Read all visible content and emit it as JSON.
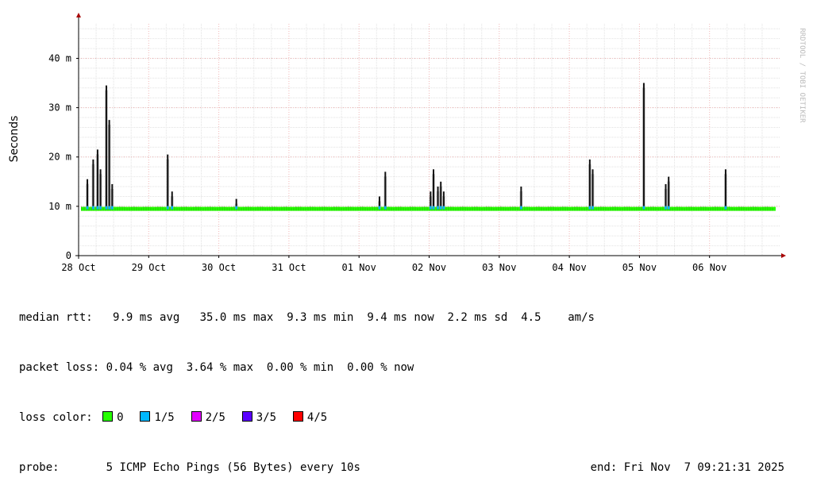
{
  "watermark": "RRDTOOL / TOBI OETIKER",
  "chart_data": {
    "type": "line",
    "ylabel": "Seconds",
    "ylim": [
      0,
      0.047
    ],
    "y_ticks": [
      {
        "value": 0,
        "label": "0"
      },
      {
        "value": 0.01,
        "label": "10 m"
      },
      {
        "value": 0.02,
        "label": "20 m"
      },
      {
        "value": 0.03,
        "label": "30 m"
      },
      {
        "value": 0.04,
        "label": "40 m"
      }
    ],
    "x_start": "2025-10-28",
    "x_end": "2025-11-07",
    "x_ticks": [
      "28 Oct",
      "29 Oct",
      "30 Oct",
      "31 Oct",
      "01 Nov",
      "02 Nov",
      "03 Nov",
      "04 Nov",
      "05 Nov",
      "06 Nov"
    ],
    "grid": true,
    "median_level": 0.0094,
    "series": [
      {
        "name": "median rtt",
        "color": "#000000",
        "spikes": [
          {
            "x": "2025-10-28 03:00",
            "y": 0.0155
          },
          {
            "x": "2025-10-28 05:00",
            "y": 0.0195
          },
          {
            "x": "2025-10-28 06:30",
            "y": 0.0215
          },
          {
            "x": "2025-10-28 07:30",
            "y": 0.0175
          },
          {
            "x": "2025-10-28 09:30",
            "y": 0.0345
          },
          {
            "x": "2025-10-28 10:30",
            "y": 0.0275
          },
          {
            "x": "2025-10-28 11:30",
            "y": 0.0145
          },
          {
            "x": "2025-10-29 06:30",
            "y": 0.0205
          },
          {
            "x": "2025-10-29 08:00",
            "y": 0.013
          },
          {
            "x": "2025-10-30 06:00",
            "y": 0.0115
          },
          {
            "x": "2025-11-01 07:00",
            "y": 0.012
          },
          {
            "x": "2025-11-01 09:00",
            "y": 0.017
          },
          {
            "x": "2025-11-02 00:30",
            "y": 0.013
          },
          {
            "x": "2025-11-02 01:30",
            "y": 0.0175
          },
          {
            "x": "2025-11-02 03:00",
            "y": 0.014
          },
          {
            "x": "2025-11-02 04:00",
            "y": 0.015
          },
          {
            "x": "2025-11-02 05:00",
            "y": 0.013
          },
          {
            "x": "2025-11-03 07:30",
            "y": 0.014
          },
          {
            "x": "2025-11-04 07:00",
            "y": 0.0195
          },
          {
            "x": "2025-11-04 08:00",
            "y": 0.0175
          },
          {
            "x": "2025-11-05 01:30",
            "y": 0.035
          },
          {
            "x": "2025-11-05 09:00",
            "y": 0.0145
          },
          {
            "x": "2025-11-05 10:00",
            "y": 0.016
          },
          {
            "x": "2025-11-06 05:30",
            "y": 0.0175
          }
        ]
      }
    ]
  },
  "stats": {
    "rtt": {
      "label": "median rtt:",
      "avg": "9.9 ms avg",
      "max": "35.0 ms max",
      "min": "9.3 ms min",
      "now": "9.4 ms now",
      "sd": "2.2 ms sd",
      "ams": "4.5",
      "ams_unit": "am/s"
    },
    "loss": {
      "label": "packet loss:",
      "avg": "0.04 % avg",
      "max": "3.64 % max",
      "min": "0.00 % min",
      "now": "0.00 % now"
    },
    "loss_color": {
      "label": "loss color:",
      "items": [
        {
          "label": "0",
          "color": "#26ff00"
        },
        {
          "label": "1/5",
          "color": "#00b8ff"
        },
        {
          "label": "2/5",
          "color": "#e300ff"
        },
        {
          "label": "3/5",
          "color": "#5b00ff"
        },
        {
          "label": "4/5",
          "color": "#ff0000"
        }
      ]
    },
    "probe": {
      "label": "probe:",
      "desc": "5 ICMP Echo Pings (56 Bytes) every 10s",
      "end": "end: Fri Nov  7 09:21:31 2025"
    }
  }
}
